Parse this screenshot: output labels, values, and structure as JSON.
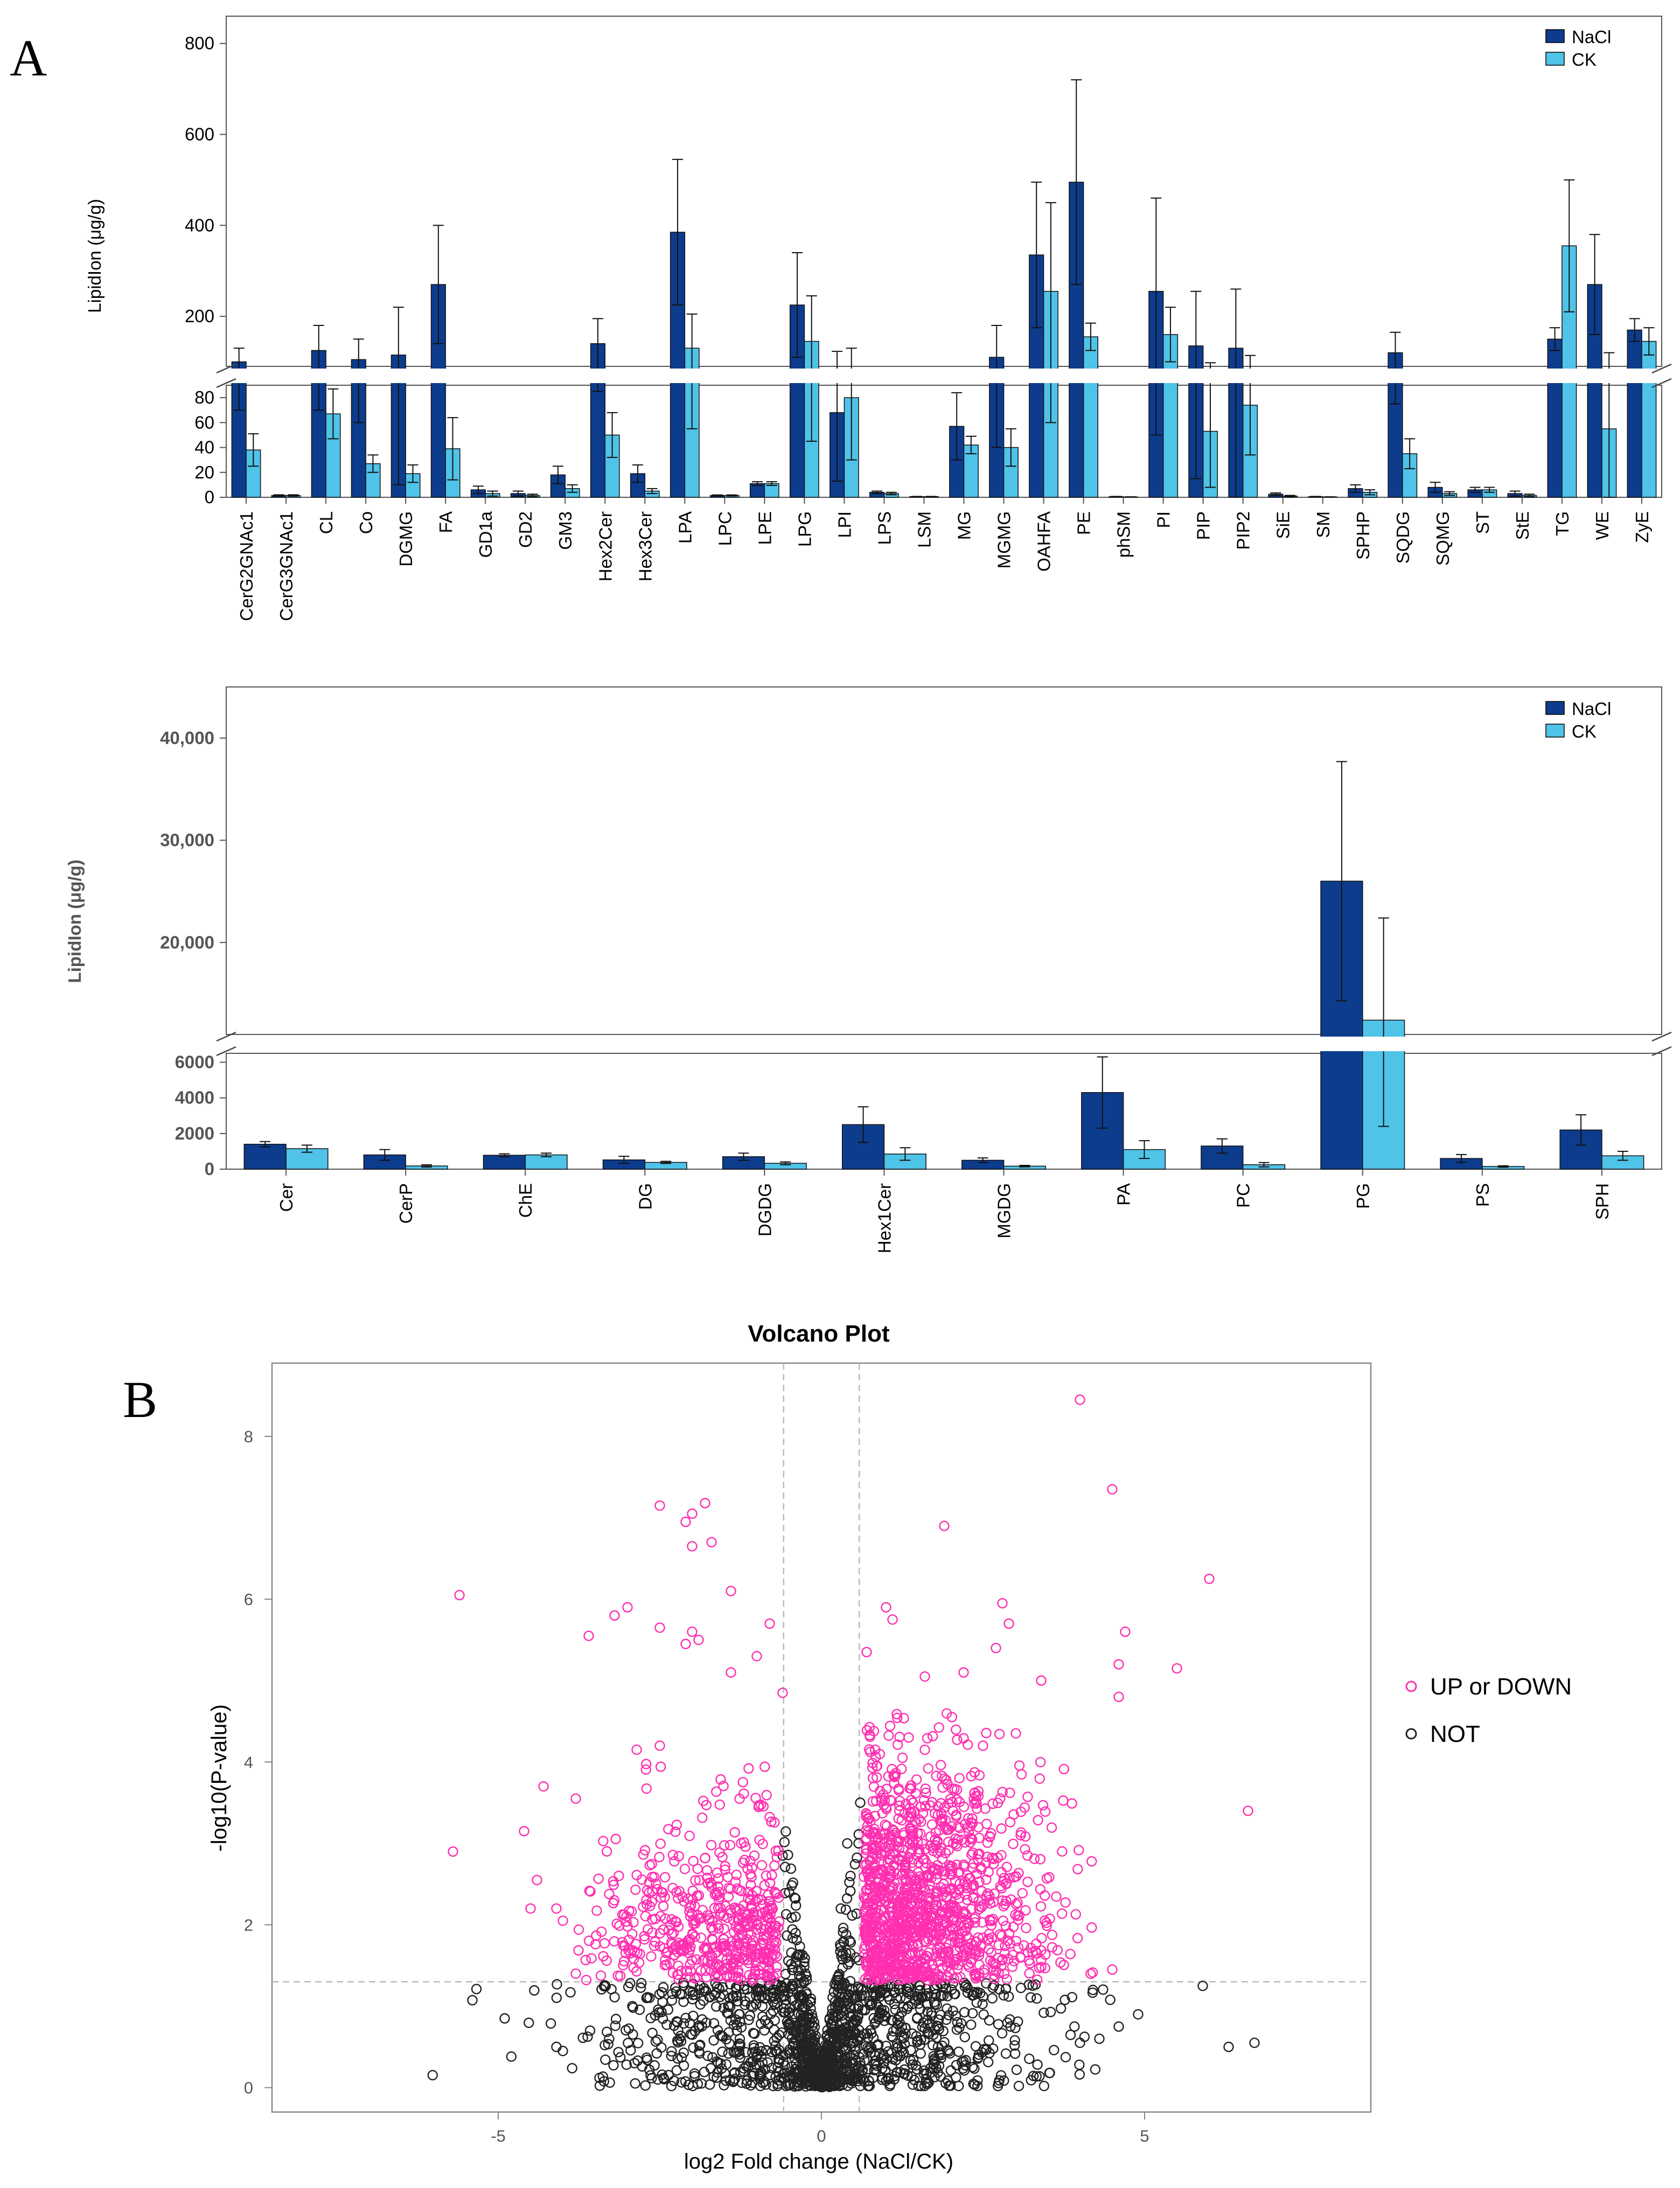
{
  "panel_labels": {
    "a": "A",
    "b": "B"
  },
  "colors": {
    "nacl": "#0d3c8c",
    "ck": "#4fc3e8",
    "up": "#ff2fb0",
    "not": "#222222",
    "ref": "#bbbbbb"
  },
  "chart_data": [
    {
      "type": "bar",
      "id": "A1",
      "ylabel": "LipidIon (μg/g)",
      "legend": [
        "NaCl",
        "CK"
      ],
      "legend_position": "top-right",
      "axis_break": {
        "lower": [
          0,
          90
        ],
        "upper": [
          90,
          860
        ]
      },
      "lower_ticks": [
        "0",
        "20",
        "40",
        "60",
        "80"
      ],
      "upper_ticks": [
        "200",
        "400",
        "600",
        "800"
      ],
      "categories": [
        "CerG2GNAc1",
        "CerG3GNAc1",
        "CL",
        "Co",
        "DGMG",
        "FA",
        "GD1a",
        "GD2",
        "GM3",
        "Hex2Cer",
        "Hex3Cer",
        "LPA",
        "LPC",
        "LPE",
        "LPG",
        "LPI",
        "LPS",
        "LSM",
        "MG",
        "MGMG",
        "OAHFA",
        "PE",
        "phSM",
        "PI",
        "PIP",
        "PIP2",
        "SiE",
        "SM",
        "SPHP",
        "SQDG",
        "SQMG",
        "ST",
        "StE",
        "TG",
        "WE",
        "ZyE"
      ],
      "series": [
        {
          "name": "NaCl",
          "values": [
            100,
            1.5,
            125,
            105,
            115,
            270,
            6,
            3,
            18,
            140,
            19,
            385,
            1.5,
            11,
            225,
            68,
            4,
            0.5,
            57,
            110,
            335,
            495,
            0.5,
            255,
            135,
            130,
            2.5,
            0.5,
            7,
            120,
            8,
            6,
            3,
            150,
            270,
            170
          ],
          "errors": [
            30,
            0.5,
            55,
            45,
            105,
            130,
            3,
            2,
            7,
            55,
            7,
            160,
            0.4,
            1.5,
            115,
            55,
            1,
            0.2,
            27,
            70,
            160,
            225,
            0.2,
            205,
            120,
            130,
            1,
            0.2,
            3,
            45,
            4,
            2,
            2,
            25,
            110,
            25
          ]
        },
        {
          "name": "CK",
          "values": [
            38,
            1.5,
            67,
            27,
            19,
            39,
            3,
            1.5,
            7,
            50,
            5,
            130,
            1.5,
            11,
            145,
            80,
            3,
            0.5,
            42,
            40,
            255,
            155,
            0.3,
            160,
            53,
            74,
            1,
            0.3,
            4,
            35,
            3,
            6,
            1.5,
            355,
            55,
            145
          ],
          "errors": [
            13,
            0.5,
            20,
            7,
            7,
            25,
            2,
            1,
            3,
            18,
            2,
            75,
            0.4,
            1.5,
            100,
            50,
            1,
            0.2,
            7,
            15,
            195,
            30,
            0.1,
            60,
            45,
            40,
            0.5,
            0.1,
            2,
            12,
            1.5,
            2,
            1,
            145,
            65,
            30
          ]
        }
      ]
    },
    {
      "type": "bar",
      "id": "A2",
      "ylabel": "LipidIon (μg/g)",
      "legend": [
        "NaCl",
        "CK"
      ],
      "legend_position": "top-right",
      "axis_break": {
        "lower": [
          0,
          6500
        ],
        "upper": [
          11000,
          45000
        ]
      },
      "lower_ticks": [
        "0",
        "2000",
        "4000",
        "6000"
      ],
      "upper_ticks": [
        "20,000",
        "30,000",
        "40,000"
      ],
      "categories": [
        "Cer",
        "CerP",
        "ChE",
        "DG",
        "DGDG",
        "Hex1Cer",
        "MGDG",
        "PA",
        "PC",
        "PG",
        "PS",
        "SPH"
      ],
      "series": [
        {
          "name": "NaCl",
          "values": [
            1400,
            800,
            780,
            520,
            700,
            2500,
            500,
            4300,
            1300,
            26000,
            600,
            2200
          ],
          "errors": [
            150,
            300,
            80,
            200,
            200,
            1000,
            130,
            2000,
            400,
            11700,
            220,
            850
          ]
        },
        {
          "name": "CK",
          "values": [
            1150,
            180,
            800,
            380,
            330,
            850,
            170,
            1100,
            250,
            12400,
            150,
            750
          ],
          "errors": [
            200,
            60,
            100,
            60,
            80,
            350,
            40,
            500,
            120,
            10000,
            40,
            250
          ]
        }
      ]
    },
    {
      "type": "scatter",
      "id": "B",
      "title": "Volcano Plot",
      "xlabel": "log2 Fold change (NaCl/CK)",
      "ylabel": "-log10(P-value)",
      "xlim": [
        -8.5,
        8.5
      ],
      "ylim": [
        -0.3,
        8.9
      ],
      "x_ticks": [
        "-5",
        "0",
        "5"
      ],
      "y_ticks": [
        "0",
        "2",
        "4",
        "6",
        "8"
      ],
      "thresholds": {
        "fold_change": 0.585,
        "p_value_log": 1.3
      },
      "legend": [
        "UP or DOWN",
        "NOT"
      ],
      "legend_position": "right",
      "highlight_points": [
        [
          4.0,
          8.45
        ],
        [
          4.5,
          7.35
        ],
        [
          -2.5,
          7.15
        ],
        [
          -1.8,
          7.18
        ],
        [
          -2.0,
          7.05
        ],
        [
          -2.1,
          6.95
        ],
        [
          1.9,
          6.9
        ],
        [
          -2.0,
          6.65
        ],
        [
          -1.7,
          6.7
        ],
        [
          -5.6,
          6.05
        ],
        [
          6.0,
          6.25
        ],
        [
          -1.4,
          6.1
        ],
        [
          -3.0,
          5.9
        ],
        [
          -3.2,
          5.8
        ],
        [
          1.0,
          5.9
        ],
        [
          2.8,
          5.95
        ],
        [
          1.1,
          5.75
        ],
        [
          2.9,
          5.7
        ],
        [
          4.7,
          5.6
        ],
        [
          -2.5,
          5.65
        ],
        [
          -0.8,
          5.7
        ],
        [
          -2.0,
          5.6
        ],
        [
          -2.1,
          5.45
        ],
        [
          -1.9,
          5.5
        ],
        [
          -3.6,
          5.55
        ],
        [
          0.7,
          5.35
        ],
        [
          -1.0,
          5.3
        ],
        [
          2.7,
          5.4
        ],
        [
          5.5,
          5.15
        ],
        [
          4.6,
          5.2
        ],
        [
          1.6,
          5.05
        ],
        [
          2.2,
          5.1
        ],
        [
          -1.4,
          5.1
        ],
        [
          3.4,
          5.0
        ],
        [
          -0.6,
          4.85
        ],
        [
          4.6,
          4.8
        ],
        [
          -4.6,
          3.15
        ],
        [
          -5.7,
          2.9
        ],
        [
          -4.3,
          3.7
        ],
        [
          -3.8,
          3.55
        ],
        [
          -4.4,
          2.55
        ],
        [
          -4.5,
          2.2
        ],
        [
          -4.1,
          2.2
        ],
        [
          -4.0,
          2.05
        ],
        [
          -3.8,
          1.4
        ],
        [
          6.6,
          3.4
        ],
        [
          4.5,
          1.45
        ],
        [
          -2.5,
          4.2
        ],
        [
          2.5,
          4.2
        ],
        [
          1.6,
          4.15
        ]
      ],
      "not_points": [
        [
          5.9,
          1.25
        ],
        [
          6.3,
          0.5
        ],
        [
          6.7,
          0.55
        ],
        [
          -4.0,
          0.45
        ],
        [
          -4.1,
          0.5
        ],
        [
          -4.9,
          0.85
        ],
        [
          4.9,
          0.9
        ],
        [
          4.6,
          0.75
        ],
        [
          4.2,
          1.2
        ],
        [
          4.3,
          0.6
        ],
        [
          4.0,
          0.55
        ],
        [
          0.6,
          3.5
        ],
        [
          0.4,
          3.0
        ],
        [
          -0.6,
          2.85
        ],
        [
          0.45,
          2.6
        ],
        [
          -0.5,
          2.4
        ],
        [
          0.3,
          2.2
        ],
        [
          -0.4,
          2.1
        ]
      ]
    }
  ],
  "legends": {
    "up": "UP or DOWN",
    "not": "NOT",
    "nacl": "NaCl",
    "ck": "CK"
  }
}
